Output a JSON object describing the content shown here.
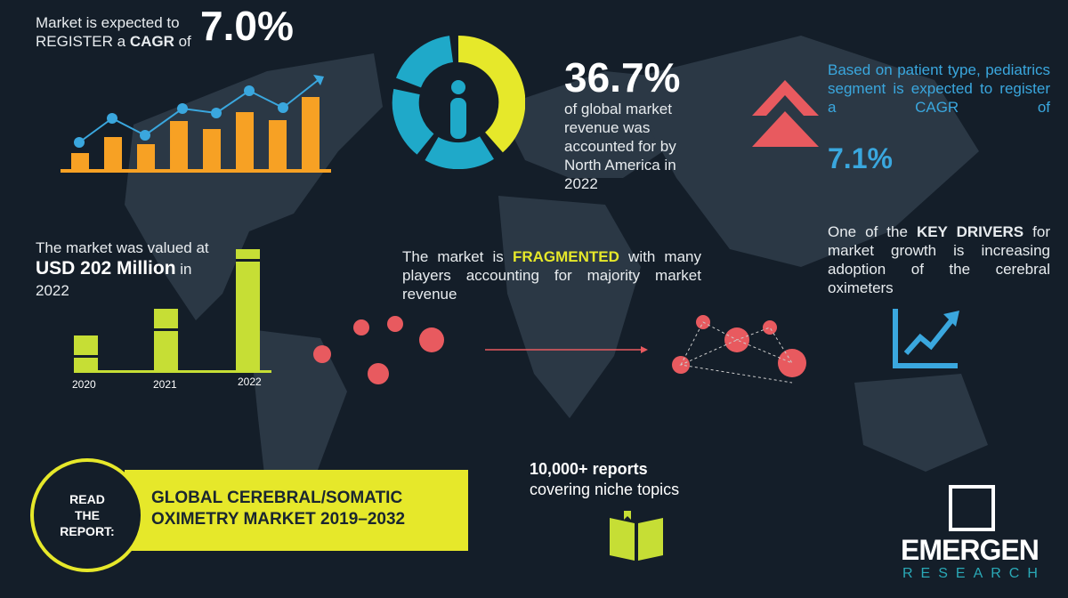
{
  "cagr": {
    "line1": "Market is expected to",
    "line2a": "REGISTER a ",
    "line2b": "CAGR",
    "line2c": " of",
    "value": "7.0%"
  },
  "share": {
    "value": "36.7%",
    "text": "of global market revenue was accounted for by North America in 2022",
    "fraction": 0.367
  },
  "pediatric": {
    "text": "Based on patient type, pediatrics segment is expected to register a CAGR of",
    "value": "7.1%"
  },
  "valued": {
    "line1": "The market was valued at",
    "amount": "USD 202 Million",
    "in": " in",
    "year": "2022",
    "bars": [
      "2020",
      "2021",
      "2022"
    ]
  },
  "fragmented": {
    "a": "The market is ",
    "b": "FRAGMENTED",
    "c": " with many players accounting for majority market revenue"
  },
  "drivers": {
    "a": "One of the ",
    "b": "KEY DRIVERS",
    "c": " for market growth is increasing adoption of the cerebral oximeters"
  },
  "report": {
    "cta": "READ THE REPORT:",
    "title1": "GLOBAL CEREBRAL/SOMATIC",
    "title2": "OXIMETRY MARKET 2019–2032"
  },
  "reports": {
    "count": "10,000+ reports",
    "text": "covering niche topics"
  },
  "logo": {
    "name": "EMERGEN",
    "sub": "RESEARCH"
  },
  "colors": {
    "bg": "#141e29",
    "orange": "#f7a124",
    "blue": "#3aa7de",
    "lime": "#c6de35",
    "red": "#e85a5f",
    "teal": "#1fa9c9",
    "yellow": "#e6e82a"
  }
}
